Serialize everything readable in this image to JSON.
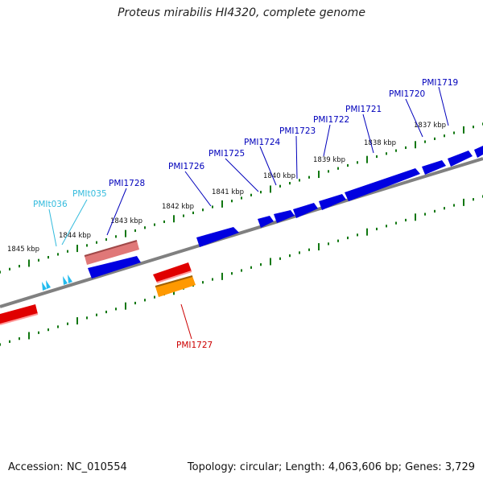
{
  "title": "Proteus mirabilis HI4320, complete genome",
  "footer": {
    "accession": "Accession: NC_010554",
    "summary": "Topology: circular; Length: 4,063,606 bp; Genes: 3,729"
  },
  "colors": {
    "backbone": "#808080",
    "tick": "#117711",
    "gene_forward": "#0000e0",
    "gene_reverse": "#e00000",
    "gene_pink": "#e07070",
    "gene_orange": "#ff9900",
    "rna": "#22bbee",
    "label_blue": "#0000bb",
    "label_cyan": "#33bbdd",
    "label_red": "#cc0000"
  },
  "kbp_labels": [
    "1845 kbp",
    "1844 kbp",
    "1843 kbp",
    "1842 kbp",
    "1841 kbp",
    "1840 kbp",
    "1839 kbp",
    "1838 kbp",
    "1837 kbp"
  ],
  "gene_labels": [
    {
      "text": "PMIt036",
      "color": "label_cyan"
    },
    {
      "text": "PMIt035",
      "color": "label_cyan"
    },
    {
      "text": "PMI1728",
      "color": "label_blue"
    },
    {
      "text": "PMI1726",
      "color": "label_blue"
    },
    {
      "text": "PMI1725",
      "color": "label_blue"
    },
    {
      "text": "PMI1724",
      "color": "label_blue"
    },
    {
      "text": "PMI1723",
      "color": "label_blue"
    },
    {
      "text": "PMI1722",
      "color": "label_blue"
    },
    {
      "text": "PMI1721",
      "color": "label_blue"
    },
    {
      "text": "PMI1720",
      "color": "label_blue"
    },
    {
      "text": "PMI1719",
      "color": "label_blue"
    },
    {
      "text": "PMI1727",
      "color": "label_red"
    }
  ]
}
